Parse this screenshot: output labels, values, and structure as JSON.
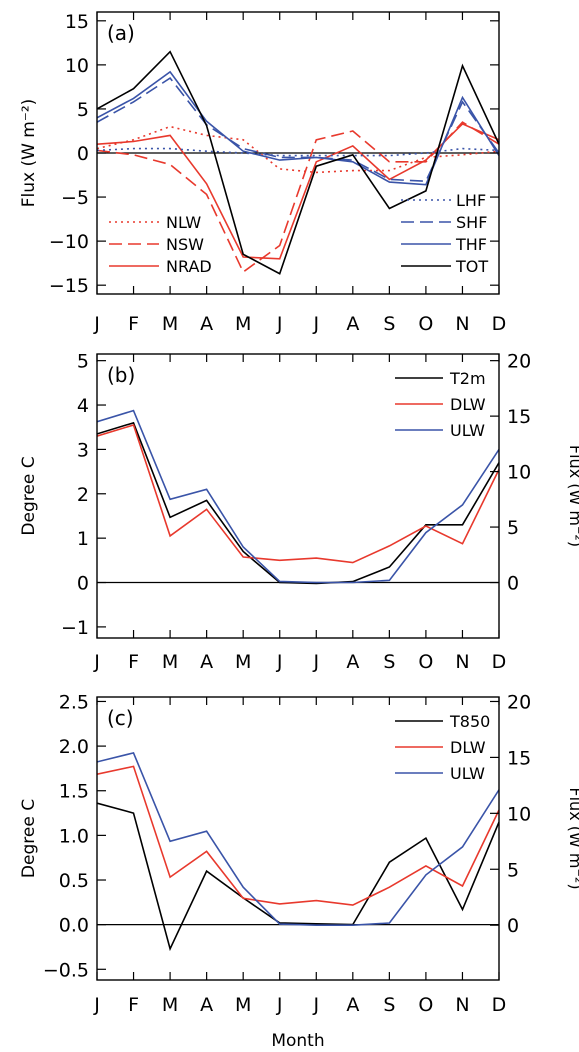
{
  "x_label": "Month",
  "months": [
    "J",
    "F",
    "M",
    "A",
    "M",
    "J",
    "J",
    "A",
    "S",
    "O",
    "N",
    "D"
  ],
  "colors": {
    "black": "#000000",
    "red": "#e8392d",
    "blue": "#3a54a8",
    "zero": "#000000"
  },
  "chart_data": [
    {
      "type": "line",
      "panel_label": "(a)",
      "ylabel": "Flux (W m⁻²)",
      "ylim": [
        -16,
        16
      ],
      "yticks": [
        -15,
        -10,
        -5,
        0,
        5,
        10,
        15
      ],
      "ytick_labels": [
        "−15",
        "−10",
        "−5",
        "0",
        "5",
        "10",
        "15"
      ],
      "categories": [
        "J",
        "F",
        "M",
        "A",
        "M",
        "J",
        "J",
        "A",
        "S",
        "O",
        "N",
        "D"
      ],
      "series": [
        {
          "name": "NLW",
          "color": "red",
          "dash": "dotted",
          "values": [
            0.5,
            1.5,
            3.0,
            2.0,
            1.5,
            -1.8,
            -2.2,
            -2.0,
            -2.0,
            -0.5,
            -0.2,
            0.2
          ]
        },
        {
          "name": "NSW",
          "color": "red",
          "dash": "dashed",
          "values": [
            0.3,
            -0.2,
            -1.3,
            -4.7,
            -13.5,
            -10.5,
            1.5,
            2.5,
            -1.0,
            -1.0,
            3.5,
            1.0
          ]
        },
        {
          "name": "NRAD",
          "color": "red",
          "dash": "solid",
          "values": [
            1.0,
            1.3,
            2.0,
            -3.5,
            -11.8,
            -12.0,
            -1.0,
            0.8,
            -3.0,
            -0.8,
            3.3,
            1.5
          ]
        },
        {
          "name": "LHF",
          "color": "blue",
          "dash": "dotted",
          "values": [
            0.3,
            0.5,
            0.5,
            0.2,
            0.0,
            -0.3,
            -0.3,
            -0.3,
            -0.3,
            0.0,
            0.5,
            0.3
          ]
        },
        {
          "name": "SHF",
          "color": "blue",
          "dash": "dashed",
          "values": [
            3.5,
            5.8,
            8.5,
            3.2,
            0.5,
            -0.5,
            -0.5,
            -0.8,
            -3.0,
            -3.2,
            5.8,
            0.0
          ]
        },
        {
          "name": "THF",
          "color": "blue",
          "dash": "solid",
          "values": [
            4.0,
            6.2,
            9.2,
            3.6,
            0.2,
            -0.8,
            -0.5,
            -1.0,
            -3.3,
            -3.6,
            6.3,
            -0.3
          ]
        },
        {
          "name": "TOT",
          "color": "black",
          "dash": "solid",
          "values": [
            5.0,
            7.3,
            11.5,
            3.1,
            -11.5,
            -13.7,
            -1.5,
            -0.2,
            -6.3,
            -4.3,
            9.9,
            1.0
          ]
        }
      ],
      "legend": [
        {
          "name": "NLW",
          "position": "bottom-left",
          "row": 0
        },
        {
          "name": "NSW",
          "position": "bottom-left",
          "row": 1
        },
        {
          "name": "NRAD",
          "position": "bottom-left",
          "row": 2
        },
        {
          "name": "LHF",
          "position": "bottom-right",
          "row": 0
        },
        {
          "name": "SHF",
          "position": "bottom-right",
          "row": 1
        },
        {
          "name": "THF",
          "position": "bottom-right",
          "row": 2
        },
        {
          "name": "TOT",
          "position": "bottom-right",
          "row": 3
        }
      ]
    },
    {
      "type": "line",
      "panel_label": "(b)",
      "ylabel": "Degree C",
      "y2label": "Flux (W m⁻²)",
      "ylim": [
        -1.25,
        5.15
      ],
      "yticks": [
        -1,
        0,
        1,
        2,
        3,
        4,
        5
      ],
      "ytick_labels": [
        "−1",
        "0",
        "1",
        "2",
        "3",
        "4",
        "5"
      ],
      "y2lim": [
        -5,
        20.6
      ],
      "y2ticks": [
        0,
        5,
        10,
        15,
        20
      ],
      "y2tick_labels": [
        "0",
        "5",
        "10",
        "15",
        "20"
      ],
      "categories": [
        "J",
        "F",
        "M",
        "A",
        "M",
        "J",
        "J",
        "A",
        "S",
        "O",
        "N",
        "D"
      ],
      "series": [
        {
          "name": "T2m",
          "color": "black",
          "axis": "left",
          "values": [
            3.35,
            3.6,
            1.47,
            1.85,
            0.7,
            0.0,
            -0.02,
            0.02,
            0.35,
            1.3,
            1.3,
            2.7
          ]
        },
        {
          "name": "DLW",
          "color": "red",
          "axis": "right",
          "values": [
            13.2,
            14.2,
            4.2,
            6.6,
            2.3,
            2.0,
            2.2,
            1.8,
            3.3,
            5.1,
            3.5,
            10.2
          ]
        },
        {
          "name": "ULW",
          "color": "blue",
          "axis": "right",
          "values": [
            14.5,
            15.5,
            7.5,
            8.4,
            3.2,
            0.1,
            0.0,
            0.0,
            0.2,
            4.5,
            7.0,
            12.0
          ]
        }
      ],
      "legend": [
        {
          "name": "T2m",
          "position": "top-right",
          "row": 0
        },
        {
          "name": "DLW",
          "position": "top-right",
          "row": 1
        },
        {
          "name": "ULW",
          "position": "top-right",
          "row": 2
        }
      ]
    },
    {
      "type": "line",
      "panel_label": "(c)",
      "ylabel": "Degree C",
      "y2label": "Flux (W m⁻²)",
      "ylim": [
        -0.62,
        2.55
      ],
      "yticks": [
        -0.5,
        0.0,
        0.5,
        1.0,
        1.5,
        2.0,
        2.5
      ],
      "ytick_labels": [
        "−0.5",
        "0.0",
        "0.5",
        "1.0",
        "1.5",
        "2.0",
        "2.5"
      ],
      "y2lim": [
        -4.9,
        20.4
      ],
      "y2ticks": [
        0,
        5,
        10,
        15,
        20
      ],
      "y2tick_labels": [
        "0",
        "5",
        "10",
        "15",
        "20"
      ],
      "categories": [
        "J",
        "F",
        "M",
        "A",
        "M",
        "J",
        "J",
        "A",
        "S",
        "O",
        "N",
        "D"
      ],
      "series": [
        {
          "name": "T850",
          "color": "black",
          "axis": "left",
          "values": [
            1.36,
            1.25,
            -0.27,
            0.6,
            0.3,
            0.02,
            0.01,
            0.0,
            0.7,
            0.97,
            0.17,
            1.15
          ]
        },
        {
          "name": "DLW",
          "color": "red",
          "axis": "right",
          "values": [
            13.5,
            14.2,
            4.3,
            6.6,
            2.4,
            1.9,
            2.2,
            1.8,
            3.4,
            5.3,
            3.5,
            10.3
          ]
        },
        {
          "name": "ULW",
          "color": "blue",
          "axis": "right",
          "values": [
            14.6,
            15.4,
            7.5,
            8.4,
            3.4,
            0.1,
            0.0,
            0.0,
            0.2,
            4.5,
            7.0,
            12.1
          ]
        }
      ],
      "legend": [
        {
          "name": "T850",
          "position": "top-right",
          "row": 0
        },
        {
          "name": "DLW",
          "position": "top-right",
          "row": 1
        },
        {
          "name": "ULW",
          "position": "top-right",
          "row": 2
        }
      ]
    }
  ]
}
